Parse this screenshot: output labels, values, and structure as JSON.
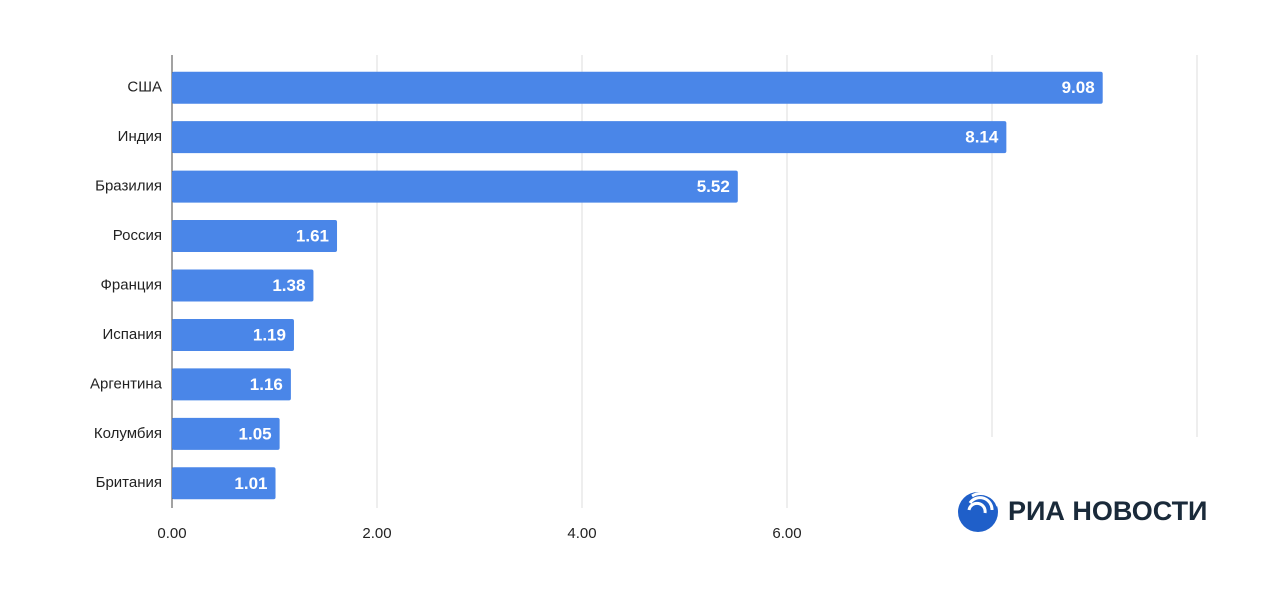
{
  "chart_data": {
    "type": "hbar",
    "categories": [
      "США",
      "Индия",
      "Бразилия",
      "Россия",
      "Франция",
      "Испания",
      "Аргентина",
      "Колумбия",
      "Британия"
    ],
    "values": [
      9.08,
      8.14,
      5.52,
      1.61,
      1.38,
      1.19,
      1.16,
      1.05,
      1.01
    ],
    "color": "#4a86e8",
    "xlim": [
      0,
      10
    ],
    "xticks": [
      {
        "value": 0,
        "label": "0.00"
      },
      {
        "value": 2,
        "label": "2.00"
      },
      {
        "value": 4,
        "label": "4.00"
      },
      {
        "value": 6,
        "label": "6.00"
      }
    ],
    "unlabeled_gridlines": [
      8,
      10
    ],
    "grid": true
  },
  "logo": {
    "text": "РИА НОВОСТИ"
  }
}
